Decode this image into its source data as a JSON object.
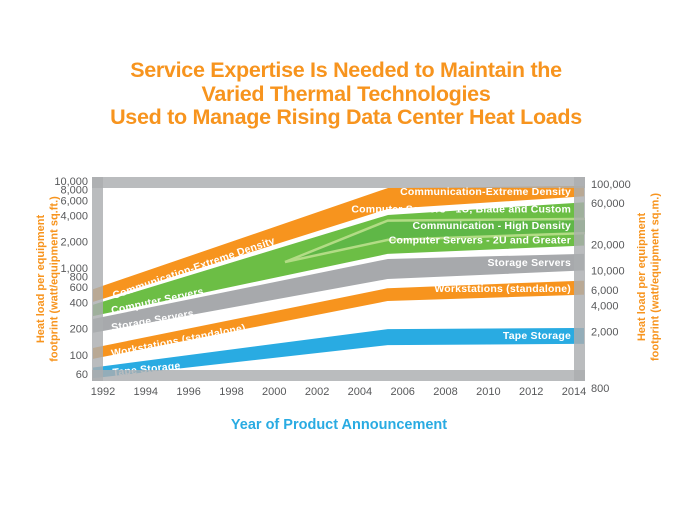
{
  "title": {
    "lines": [
      "Service Expertise Is Needed to Maintain the",
      "Varied Thermal Technologies",
      "Used to Manage Rising Data Center Heat Loads"
    ],
    "color": "#F7941E"
  },
  "chart_data": {
    "type": "area",
    "description": "Trend bands of heat load per equipment footprint vs year of product announcement, log scale",
    "x_axis": {
      "title": "Year of Product Announcement",
      "title_color": "#29ABE2",
      "ticks": [
        "1992",
        "1994",
        "1996",
        "1998",
        "2000",
        "2002",
        "2004",
        "2006",
        "2008",
        "2010",
        "2012",
        "2014"
      ],
      "range": [
        1992,
        2014
      ]
    },
    "y_axis_left": {
      "title_lines": [
        "Heat load per equipment",
        "footprint (watt/equipment sq.ft.)"
      ],
      "title_color": "#F7941E",
      "scale": "log",
      "ticks": [
        "10,000",
        "8,000",
        "6,000",
        "4,000",
        "2,000",
        "1,000",
        "800",
        "600",
        "400",
        "200",
        "100",
        "60"
      ],
      "range": [
        60,
        10000
      ]
    },
    "y_axis_right": {
      "title_lines": [
        "Heat load per equipment",
        "footprint (watt/equipment sq.m.)"
      ],
      "title_color": "#F7941E",
      "scale": "log",
      "ticks": [
        "100,000",
        "60,000",
        "20,000",
        "10,000",
        "6,000",
        "4,000",
        "2,000",
        "800"
      ],
      "range": [
        800,
        100000
      ],
      "sqft_per_sqm": 10.7639
    },
    "bands": [
      {
        "id": "communication-extreme-density",
        "color": "#F7941E",
        "years": [
          1992,
          2005.3,
          2014
        ],
        "top": [
          640,
          8530,
          9000
        ],
        "bottom": [
          430,
          4640,
          6370
        ],
        "label_left": "Communication-Extreme Density",
        "label_right": "Communication-Extreme Density"
      },
      {
        "id": "computer-servers",
        "color": "#6CBE45",
        "years": [
          1992,
          2005.3,
          2014
        ],
        "top": [
          420,
          4170,
          5730
        ],
        "bottom": [
          287,
          1410,
          1740
        ],
        "label_left": "Computer Servers",
        "sub_bands": {
          "wedge_color": "#5FB747",
          "divider_color": "#B2DC85",
          "divider_top": {
            "years": [
              2000.5,
              2005.3,
              2014
            ],
            "values": [
              1170,
              3500,
              3655
            ]
          },
          "divider_bottom": {
            "years": [
              2000.5,
              2005.3,
              2014
            ],
            "values": [
              1170,
              2100,
              2490
            ]
          },
          "labels_right": [
            "Computer Servers - 1U, Blade and Custom",
            "Communication - High Density",
            "Computer Servers - 2U and Greater"
          ]
        }
      },
      {
        "id": "storage-servers",
        "color": "#A7A9AC",
        "years": [
          1992,
          2005.3,
          2014
        ],
        "top": [
          280,
          1300,
          1480
        ],
        "bottom": [
          183,
          726,
          900
        ],
        "label_left": "Storage Servers",
        "label_right": "Storage Servers"
      },
      {
        "id": "workstations-standalone",
        "color": "#F7941E",
        "years": [
          1992,
          2005.3,
          2014
        ],
        "top": [
          130,
          600,
          726
        ],
        "bottom": [
          92,
          405,
          475
        ],
        "label_left": "Workstations (standalone)",
        "label_right": "Workstations (standalone)"
      },
      {
        "id": "tape-storage",
        "color": "#29ABE2",
        "years": [
          1992,
          2005.3,
          2014
        ],
        "top": [
          76,
          203,
          209
        ],
        "bottom": [
          54,
          126,
          130
        ],
        "label_left": "Tape Storage",
        "label_right": "Tape Storage"
      }
    ]
  }
}
